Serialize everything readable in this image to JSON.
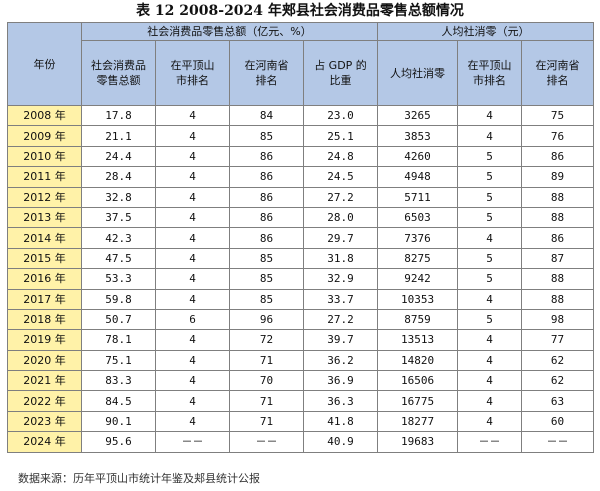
{
  "title": "表 12 2008-2024 年郏县社会消费品零售总额情况",
  "header": {
    "year": "年份",
    "group1": "社会消费品零售总额（亿元、%）",
    "group2": "人均社消零（元）",
    "cols": [
      "社会消费品零售总额",
      "在平顶山市排名",
      "在河南省排名",
      "占 GDP 的比重",
      "人均社消零",
      "在平顶山市排名",
      "在河南省排名"
    ]
  },
  "rows": [
    {
      "year": "2008 年",
      "total": "17.8",
      "pds_rank": "4",
      "henan_rank": "84",
      "gdp_share": "23.0",
      "per_capita": "3265",
      "pc_pds_rank": "4",
      "pc_henan_rank": "75"
    },
    {
      "year": "2009 年",
      "total": "21.1",
      "pds_rank": "4",
      "henan_rank": "85",
      "gdp_share": "25.1",
      "per_capita": "3853",
      "pc_pds_rank": "4",
      "pc_henan_rank": "76"
    },
    {
      "year": "2010 年",
      "total": "24.4",
      "pds_rank": "4",
      "henan_rank": "86",
      "gdp_share": "24.8",
      "per_capita": "4260",
      "pc_pds_rank": "5",
      "pc_henan_rank": "86"
    },
    {
      "year": "2011 年",
      "total": "28.4",
      "pds_rank": "4",
      "henan_rank": "86",
      "gdp_share": "24.5",
      "per_capita": "4948",
      "pc_pds_rank": "5",
      "pc_henan_rank": "89"
    },
    {
      "year": "2012 年",
      "total": "32.8",
      "pds_rank": "4",
      "henan_rank": "86",
      "gdp_share": "27.2",
      "per_capita": "5711",
      "pc_pds_rank": "5",
      "pc_henan_rank": "88"
    },
    {
      "year": "2013 年",
      "total": "37.5",
      "pds_rank": "4",
      "henan_rank": "86",
      "gdp_share": "28.0",
      "per_capita": "6503",
      "pc_pds_rank": "5",
      "pc_henan_rank": "88"
    },
    {
      "year": "2014 年",
      "total": "42.3",
      "pds_rank": "4",
      "henan_rank": "86",
      "gdp_share": "29.7",
      "per_capita": "7376",
      "pc_pds_rank": "4",
      "pc_henan_rank": "86"
    },
    {
      "year": "2015 年",
      "total": "47.5",
      "pds_rank": "4",
      "henan_rank": "85",
      "gdp_share": "31.8",
      "per_capita": "8275",
      "pc_pds_rank": "5",
      "pc_henan_rank": "87"
    },
    {
      "year": "2016 年",
      "total": "53.3",
      "pds_rank": "4",
      "henan_rank": "85",
      "gdp_share": "32.9",
      "per_capita": "9242",
      "pc_pds_rank": "5",
      "pc_henan_rank": "88"
    },
    {
      "year": "2017 年",
      "total": "59.8",
      "pds_rank": "4",
      "henan_rank": "85",
      "gdp_share": "33.7",
      "per_capita": "10353",
      "pc_pds_rank": "4",
      "pc_henan_rank": "88"
    },
    {
      "year": "2018 年",
      "total": "50.7",
      "pds_rank": "6",
      "henan_rank": "96",
      "gdp_share": "27.2",
      "per_capita": "8759",
      "pc_pds_rank": "5",
      "pc_henan_rank": "98"
    },
    {
      "year": "2019 年",
      "total": "78.1",
      "pds_rank": "4",
      "henan_rank": "72",
      "gdp_share": "39.7",
      "per_capita": "13513",
      "pc_pds_rank": "4",
      "pc_henan_rank": "77"
    },
    {
      "year": "2020 年",
      "total": "75.1",
      "pds_rank": "4",
      "henan_rank": "71",
      "gdp_share": "36.2",
      "per_capita": "14820",
      "pc_pds_rank": "4",
      "pc_henan_rank": "62"
    },
    {
      "year": "2021 年",
      "total": "83.3",
      "pds_rank": "4",
      "henan_rank": "70",
      "gdp_share": "36.9",
      "per_capita": "16506",
      "pc_pds_rank": "4",
      "pc_henan_rank": "62"
    },
    {
      "year": "2022 年",
      "total": "84.5",
      "pds_rank": "4",
      "henan_rank": "71",
      "gdp_share": "36.3",
      "per_capita": "16775",
      "pc_pds_rank": "4",
      "pc_henan_rank": "63"
    },
    {
      "year": "2023 年",
      "total": "90.1",
      "pds_rank": "4",
      "henan_rank": "71",
      "gdp_share": "41.8",
      "per_capita": "18277",
      "pc_pds_rank": "4",
      "pc_henan_rank": "60"
    },
    {
      "year": "2024 年",
      "total": "95.6",
      "pds_rank": "－－",
      "henan_rank": "－－",
      "gdp_share": "40.9",
      "per_capita": "19683",
      "pc_pds_rank": "－－",
      "pc_henan_rank": "－－"
    }
  ],
  "source": "数据来源：历年平顶山市统计年鉴及郏县统计公报",
  "colors": {
    "header_bg": "#b4c8e6",
    "year_bg": "#fff2a8",
    "border": "#7f7f7f"
  }
}
